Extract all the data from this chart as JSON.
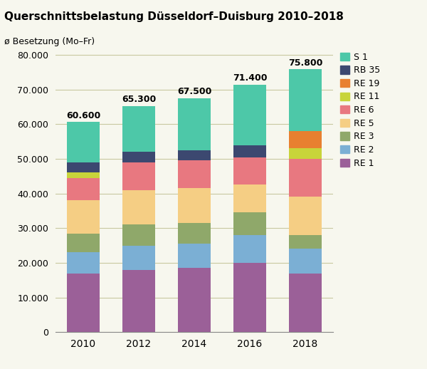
{
  "title": "Querschnittsbelastung Düsseldorf–Duisburg 2010–2018",
  "subtitle": "ø Besetzung (Mo–Fr)",
  "years": [
    2010,
    2012,
    2014,
    2016,
    2018
  ],
  "totals": [
    "60.600",
    "65.300",
    "67.500",
    "71.400",
    "75.800"
  ],
  "lines": [
    "RE 1",
    "RE 2",
    "RE 3",
    "RE 5",
    "RE 6",
    "RE 11",
    "RE 19",
    "RB 35",
    "S 1"
  ],
  "colors": [
    "#9B6098",
    "#7BAFD4",
    "#8FA86A",
    "#F5CE84",
    "#E87880",
    "#C8D43A",
    "#E88030",
    "#3C4870",
    "#4DC8A8"
  ],
  "data": {
    "RE 1": [
      17000,
      18000,
      18500,
      20000,
      17000
    ],
    "RE 2": [
      6000,
      7000,
      7000,
      8000,
      7000
    ],
    "RE 3": [
      5500,
      6000,
      6000,
      6500,
      4000
    ],
    "RE 5": [
      9500,
      10000,
      10000,
      8000,
      11000
    ],
    "RE 6": [
      6500,
      8000,
      8000,
      8000,
      11000
    ],
    "RE 11": [
      1500,
      0,
      0,
      0,
      3000
    ],
    "RE 19": [
      0,
      0,
      0,
      0,
      5000
    ],
    "RB 35": [
      3000,
      3000,
      3000,
      3500,
      0
    ],
    "S 1": [
      11600,
      13300,
      15000,
      17400,
      17800
    ]
  },
  "ylim": [
    0,
    82000
  ],
  "yticks": [
    0,
    10000,
    20000,
    30000,
    40000,
    50000,
    60000,
    70000,
    80000
  ],
  "ytick_labels": [
    "0",
    "10.000",
    "20.000",
    "30.000",
    "40.000",
    "50.000",
    "60.000",
    "70.000",
    "80.000"
  ],
  "bg_color": "#F7F7EE",
  "bar_width": 0.6
}
